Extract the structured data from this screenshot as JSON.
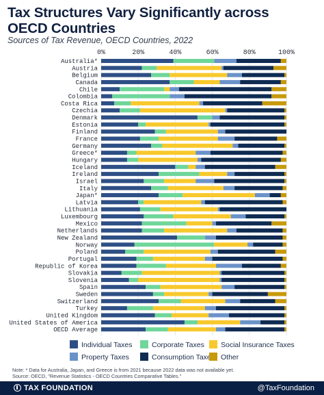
{
  "header": {
    "title": "Tax Structures Vary Significantly across OECD Countries",
    "subtitle": "Sources of Tax Revenue, OECD Countries, 2022"
  },
  "legend": {
    "individual": "Individual Taxes",
    "corporate": "Corporate Taxes",
    "social": "Social Insurance Taxes",
    "property": "Property Taxes",
    "consumption": "Consumption Taxes",
    "other": "Other"
  },
  "colors": {
    "individual": "#2e4f85",
    "corporate": "#6fd69a",
    "social": "#f8c92d",
    "property": "#6b93c9",
    "consumption": "#0f2b52",
    "other": "#c79a0c"
  },
  "footer": {
    "note_line1": "Note: * Data for Australia, Japan, and Greece is from 2021 because 2022 data was not available yet.",
    "note_line2": "Source: OECD, \"Revenue Statistics - OECD Countries Comparative Tables.\"",
    "brand": "TAX FOUNDATION",
    "handle": "@TaxFoundation"
  },
  "chart_data": {
    "type": "bar",
    "orientation": "horizontal",
    "stacked": true,
    "xlim": [
      0,
      100
    ],
    "xticks": [
      "0%",
      "20%",
      "40%",
      "60%",
      "80%",
      "100%"
    ],
    "categories": [
      "Australia*",
      "Austria",
      "Belgium",
      "Canada",
      "Chile",
      "Colombia",
      "Costa Rica",
      "Czechia",
      "Denmark",
      "Estonia",
      "Finland",
      "France",
      "Germany",
      "Greece*",
      "Hungary",
      "Iceland",
      "Ireland",
      "Israel",
      "Italy",
      "Japan*",
      "Latvia",
      "Lithuania",
      "Luxembourg",
      "Mexico",
      "Netherlands",
      "New Zealand",
      "Norway",
      "Poland",
      "Portugal",
      "Republic of Korea",
      "Slovakia",
      "Slovenia",
      "Spain",
      "Sweden",
      "Switzerland",
      "Turkey",
      "United Kingdom",
      "United States of America",
      "OECD Average"
    ],
    "series": [
      {
        "name": "Individual Taxes",
        "key": "individual",
        "values": [
          39,
          22,
          27,
          37,
          10,
          6,
          7,
          10,
          52,
          20,
          29,
          21,
          27,
          14,
          14,
          40,
          31,
          23,
          27,
          31,
          20,
          21,
          23,
          22,
          22,
          41,
          18,
          13,
          19,
          19,
          11,
          15,
          24,
          28,
          31,
          14,
          29,
          45,
          24
        ]
      },
      {
        "name": "Corporate Taxes",
        "key": "corporate",
        "values": [
          22,
          8,
          10,
          13,
          24,
          31,
          9,
          11,
          8,
          4,
          6,
          10,
          6,
          5,
          6,
          7,
          22,
          11,
          9,
          13,
          3,
          11,
          16,
          24,
          12,
          15,
          43,
          10,
          9,
          16,
          11,
          5,
          8,
          6,
          12,
          14,
          9,
          7,
          12
        ]
      },
      {
        "name": "Social Insurance Taxes",
        "key": "social",
        "values": [
          0,
          35,
          31,
          14,
          3,
          0,
          37,
          46,
          0,
          34,
          28,
          32,
          38,
          32,
          32,
          4,
          15,
          17,
          30,
          39,
          31,
          31,
          31,
          14,
          34,
          0,
          18,
          36,
          28,
          27,
          42,
          44,
          33,
          24,
          24,
          28,
          20,
          23,
          26
        ]
      },
      {
        "name": "Property Taxes",
        "key": "property",
        "values": [
          12,
          1,
          8,
          11,
          5,
          8,
          2,
          1,
          4,
          1,
          4,
          9,
          3,
          8,
          2,
          5,
          4,
          10,
          6,
          8,
          2,
          1,
          8,
          2,
          5,
          6,
          3,
          4,
          4,
          14,
          1,
          1,
          7,
          2,
          8,
          6,
          11,
          11,
          5
        ]
      },
      {
        "name": "Consumption Taxes",
        "key": "consumption",
        "values": [
          24,
          27,
          23,
          22,
          50,
          47,
          32,
          31,
          35,
          40,
          33,
          23,
          25,
          39,
          43,
          38,
          27,
          38,
          26,
          6,
          42,
          36,
          21,
          30,
          25,
          36,
          16,
          31,
          38,
          21,
          34,
          34,
          27,
          30,
          19,
          37,
          30,
          13,
          32
        ]
      },
      {
        "name": "Other",
        "key": "other",
        "values": [
          3,
          7,
          1,
          3,
          8,
          8,
          13,
          1,
          1,
          1,
          0,
          5,
          1,
          2,
          3,
          6,
          1,
          1,
          2,
          3,
          2,
          0,
          1,
          8,
          2,
          2,
          2,
          6,
          2,
          3,
          1,
          1,
          1,
          10,
          6,
          1,
          1,
          1,
          1
        ]
      }
    ]
  }
}
